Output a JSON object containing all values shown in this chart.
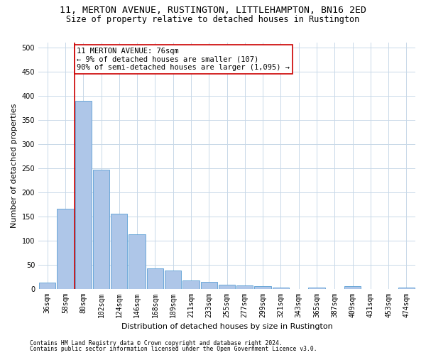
{
  "title1": "11, MERTON AVENUE, RUSTINGTON, LITTLEHAMPTON, BN16 2ED",
  "title2": "Size of property relative to detached houses in Rustington",
  "xlabel": "Distribution of detached houses by size in Rustington",
  "ylabel": "Number of detached properties",
  "categories": [
    "36sqm",
    "58sqm",
    "80sqm",
    "102sqm",
    "124sqm",
    "146sqm",
    "168sqm",
    "189sqm",
    "211sqm",
    "233sqm",
    "255sqm",
    "277sqm",
    "299sqm",
    "321sqm",
    "343sqm",
    "365sqm",
    "387sqm",
    "409sqm",
    "431sqm",
    "453sqm",
    "474sqm"
  ],
  "values": [
    12,
    165,
    390,
    247,
    155,
    113,
    42,
    38,
    17,
    14,
    8,
    7,
    5,
    3,
    0,
    3,
    0,
    5,
    0,
    0,
    3
  ],
  "bar_color": "#aec6e8",
  "bar_edge_color": "#5a9fd4",
  "vline_x_index": 2,
  "vline_color": "#cc0000",
  "annotation_text": "11 MERTON AVENUE: 76sqm\n← 9% of detached houses are smaller (107)\n90% of semi-detached houses are larger (1,095) →",
  "annotation_box_color": "#ffffff",
  "annotation_box_edge_color": "#cc0000",
  "ylim": [
    0,
    510
  ],
  "yticks": [
    0,
    50,
    100,
    150,
    200,
    250,
    300,
    350,
    400,
    450,
    500
  ],
  "footnote1": "Contains HM Land Registry data © Crown copyright and database right 2024.",
  "footnote2": "Contains public sector information licensed under the Open Government Licence v3.0.",
  "background_color": "#ffffff",
  "grid_color": "#c8d8e8",
  "title1_fontsize": 9.5,
  "title2_fontsize": 8.5,
  "xlabel_fontsize": 8,
  "ylabel_fontsize": 8,
  "tick_fontsize": 7,
  "annotation_fontsize": 7.5,
  "footnote_fontsize": 5.8
}
